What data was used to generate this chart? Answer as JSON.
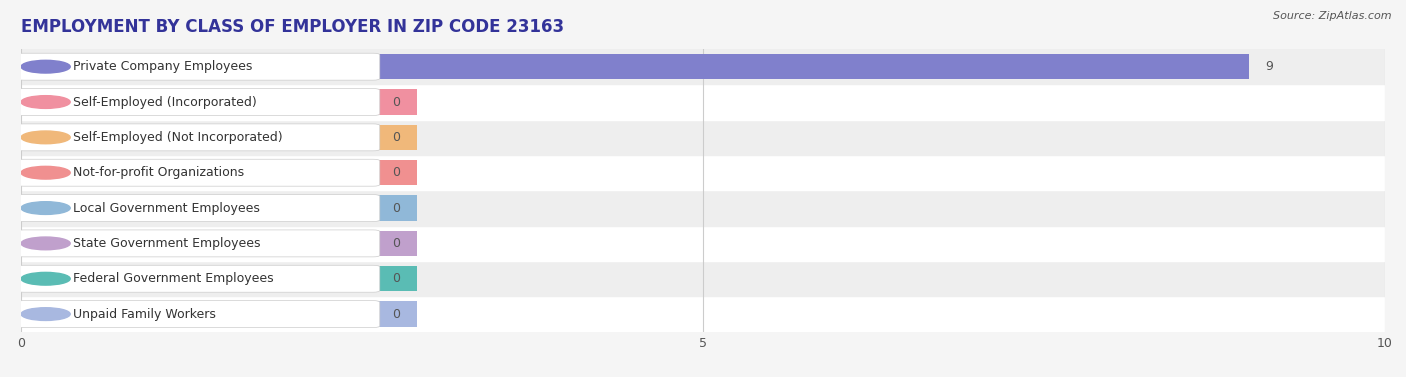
{
  "title": "EMPLOYMENT BY CLASS OF EMPLOYER IN ZIP CODE 23163",
  "source": "Source: ZipAtlas.com",
  "categories": [
    "Private Company Employees",
    "Self-Employed (Incorporated)",
    "Self-Employed (Not Incorporated)",
    "Not-for-profit Organizations",
    "Local Government Employees",
    "State Government Employees",
    "Federal Government Employees",
    "Unpaid Family Workers"
  ],
  "values": [
    9,
    0,
    0,
    0,
    0,
    0,
    0,
    0
  ],
  "bar_colors": [
    "#8080cc",
    "#f090a0",
    "#f0b87a",
    "#f09090",
    "#90b8d8",
    "#c0a0cc",
    "#5abcb4",
    "#a8b8e0"
  ],
  "xlim": [
    0,
    10
  ],
  "xticks": [
    0,
    5,
    10
  ],
  "bg_color": "#f5f5f5",
  "row_colors": [
    "#ffffff",
    "#eeeeee"
  ],
  "title_fontsize": 12,
  "label_fontsize": 9,
  "value_fontsize": 9
}
